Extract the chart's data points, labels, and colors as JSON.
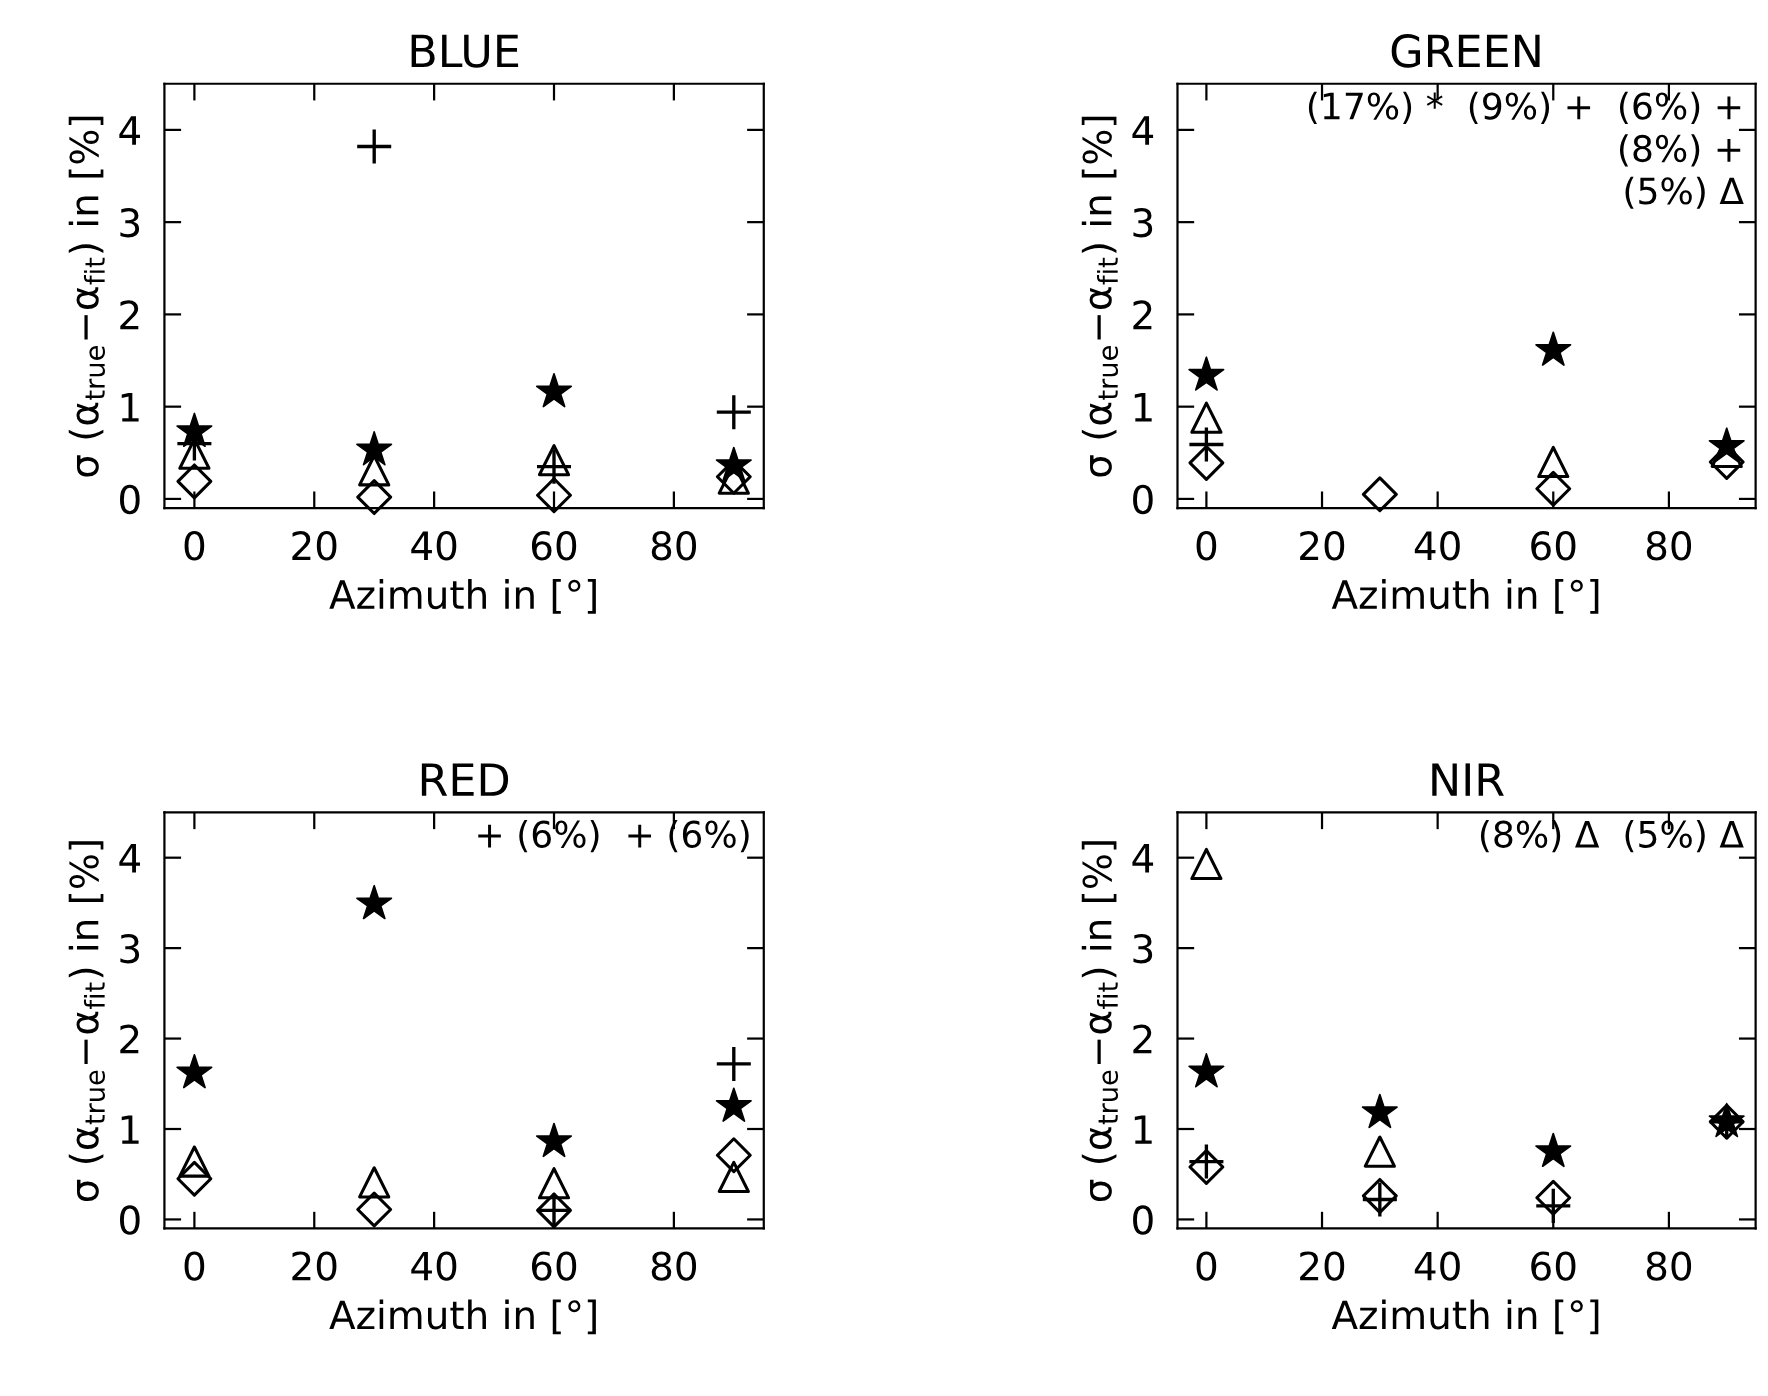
{
  "chart_data": [
    {
      "type": "scatter",
      "title": "BLUE",
      "xlabel": "Azimuth in [°]",
      "ylabel": "σ (α$_{true}$−α$_{fit}$) in [%]",
      "x": [
        0,
        30,
        60,
        90
      ],
      "xlim": [
        -5,
        95
      ],
      "ylim": [
        -0.1,
        4.5
      ],
      "xticks": [
        0,
        20,
        40,
        60,
        80
      ],
      "yticks": [
        0,
        1,
        2,
        3,
        4
      ],
      "series": [
        {
          "marker": "star",
          "color": "#000000",
          "values": [
            0.73,
            0.53,
            1.16,
            0.36
          ]
        },
        {
          "marker": "cross",
          "color": "#000000",
          "values": [
            0.6,
            3.82,
            0.35,
            0.94
          ]
        },
        {
          "marker": "triangle",
          "color": "#000000",
          "values": [
            0.49,
            0.31,
            0.42,
            0.22
          ]
        },
        {
          "marker": "diamond",
          "color": "#000000",
          "values": [
            0.19,
            0.02,
            0.04,
            0.24
          ]
        }
      ]
    },
    {
      "type": "scatter",
      "title": "GREEN",
      "xlabel": "Azimuth in [°]",
      "ylabel": "σ (α$_{true}$−α$_{fit}$) in [%]",
      "x": [
        0,
        30,
        60,
        90
      ],
      "xlim": [
        -5,
        95
      ],
      "ylim": [
        -0.1,
        4.5
      ],
      "xticks": [
        0,
        20,
        40,
        60,
        80
      ],
      "yticks": [
        0,
        1,
        2,
        3,
        4
      ],
      "annotations": [
        "(17%) *  (9%) +  (6%) +",
        "(8%) +",
        "(5%) Δ"
      ],
      "series": [
        {
          "marker": "star",
          "color": "#000000",
          "values": [
            1.34,
            null,
            1.61,
            0.57
          ]
        },
        {
          "marker": "cross",
          "color": "#000000",
          "values": [
            0.59,
            null,
            null,
            null
          ]
        },
        {
          "marker": "triangle",
          "color": "#000000",
          "values": [
            0.88,
            null,
            0.4,
            0.51
          ]
        },
        {
          "marker": "diamond",
          "color": "#000000",
          "values": [
            0.39,
            0.05,
            0.11,
            0.4
          ]
        }
      ]
    },
    {
      "type": "scatter",
      "title": "RED",
      "xlabel": "Azimuth in [°]",
      "ylabel": "σ (α$_{true}$−α$_{fit}$) in [%]",
      "x": [
        0,
        30,
        60,
        90
      ],
      "xlim": [
        -5,
        95
      ],
      "ylim": [
        -0.1,
        4.5
      ],
      "xticks": [
        0,
        20,
        40,
        60,
        80
      ],
      "yticks": [
        0,
        1,
        2,
        3,
        4
      ],
      "annotations": [
        "+ (6%)  + (6%)"
      ],
      "series": [
        {
          "marker": "star",
          "color": "#000000",
          "values": [
            1.62,
            3.49,
            0.86,
            1.25
          ]
        },
        {
          "marker": "cross",
          "color": "#000000",
          "values": [
            null,
            null,
            0.1,
            1.72
          ]
        },
        {
          "marker": "triangle",
          "color": "#000000",
          "values": [
            0.64,
            0.41,
            0.4,
            0.47
          ]
        },
        {
          "marker": "diamond",
          "color": "#000000",
          "values": [
            0.45,
            0.11,
            0.1,
            0.71
          ]
        }
      ]
    },
    {
      "type": "scatter",
      "title": "NIR",
      "xlabel": "Azimuth in [°]",
      "ylabel": "σ (α$_{true}$−α$_{fit}$) in [%]",
      "x": [
        0,
        30,
        60,
        90
      ],
      "xlim": [
        -5,
        95
      ],
      "ylim": [
        -0.1,
        4.5
      ],
      "xticks": [
        0,
        20,
        40,
        60,
        80
      ],
      "yticks": [
        0,
        1,
        2,
        3,
        4
      ],
      "annotations": [
        "(8%) Δ  (5%) Δ"
      ],
      "series": [
        {
          "marker": "star",
          "color": "#000000",
          "values": [
            1.63,
            1.18,
            0.75,
            1.08
          ]
        },
        {
          "marker": "cross",
          "color": "#000000",
          "values": [
            0.64,
            0.22,
            0.15,
            1.08
          ]
        },
        {
          "marker": "triangle",
          "color": "#000000",
          "values": [
            3.93,
            0.75,
            null,
            null
          ]
        },
        {
          "marker": "diamond",
          "color": "#000000",
          "values": [
            0.58,
            0.26,
            0.24,
            1.08
          ]
        }
      ]
    }
  ]
}
